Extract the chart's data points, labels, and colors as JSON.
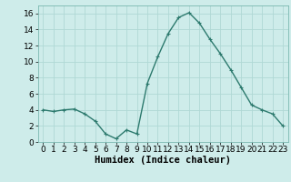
{
  "x": [
    0,
    1,
    2,
    3,
    4,
    5,
    6,
    7,
    8,
    9,
    10,
    11,
    12,
    13,
    14,
    15,
    16,
    17,
    18,
    19,
    20,
    21,
    22,
    23
  ],
  "y": [
    4.0,
    3.8,
    4.0,
    4.1,
    3.5,
    2.6,
    1.0,
    0.4,
    1.5,
    1.0,
    7.3,
    10.6,
    13.5,
    15.5,
    16.1,
    14.8,
    12.8,
    11.0,
    9.0,
    6.8,
    4.6,
    4.0,
    3.5,
    2.0
  ],
  "line_color": "#2d7a6e",
  "marker": "+",
  "marker_size": 3,
  "background_color": "#ceecea",
  "grid_color": "#b0d8d5",
  "xlabel": "Humidex (Indice chaleur)",
  "xlim": [
    -0.5,
    23.5
  ],
  "ylim": [
    0,
    17
  ],
  "yticks": [
    0,
    2,
    4,
    6,
    8,
    10,
    12,
    14,
    16
  ],
  "xticks": [
    0,
    1,
    2,
    3,
    4,
    5,
    6,
    7,
    8,
    9,
    10,
    11,
    12,
    13,
    14,
    15,
    16,
    17,
    18,
    19,
    20,
    21,
    22,
    23
  ],
  "xlabel_fontsize": 7.5,
  "tick_fontsize": 6.5,
  "line_width": 1.0,
  "marker_edge_width": 0.8
}
